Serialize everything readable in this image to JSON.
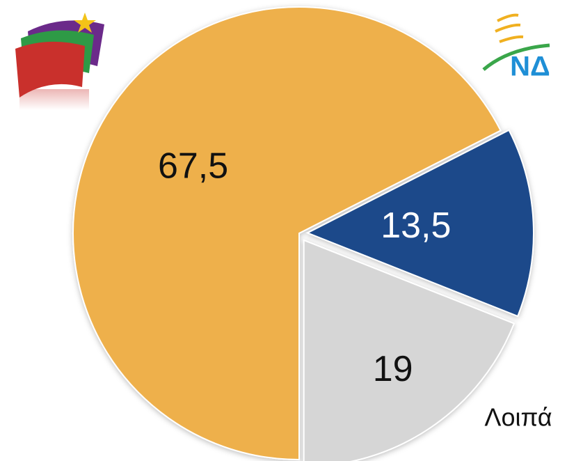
{
  "chart_data": {
    "type": "pie",
    "categories": [
      null,
      "ΝΔ",
      "Λοιπά"
    ],
    "values": [
      67.5,
      13.5,
      19
    ],
    "value_labels": [
      "67,5",
      "13,5",
      "19"
    ],
    "colors": [
      "#eeb04c",
      "#1a4a8a",
      "#d6d6d6"
    ]
  }
}
